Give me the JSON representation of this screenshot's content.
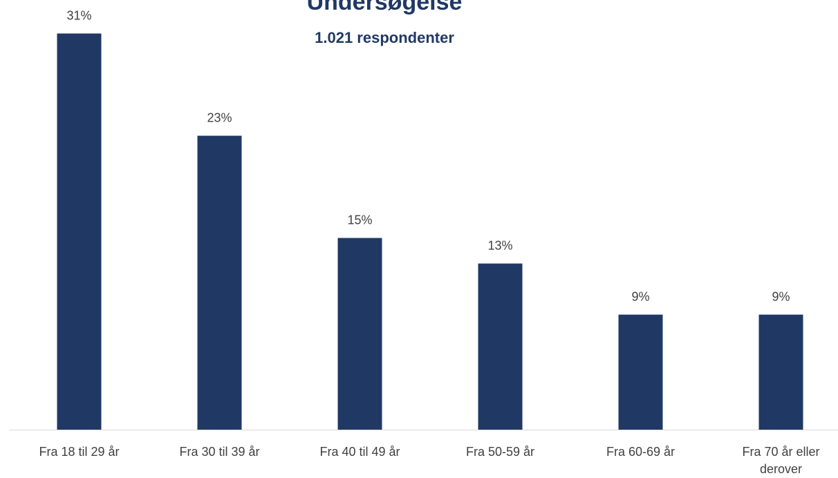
{
  "chart_data": {
    "type": "bar",
    "title": "Undersøgelse",
    "subtitle": "1.021 respondenter",
    "categories": [
      "Fra 18 til 29 år",
      "Fra 30 til 39 år",
      "Fra 40 til 49 år",
      "Fra 50-59 år",
      "Fra 60-69 år",
      "Fra 70 år eller derover"
    ],
    "values": [
      31,
      23,
      15,
      13,
      9,
      9
    ],
    "value_labels": [
      "31%",
      "23%",
      "15%",
      "13%",
      "9%",
      "9%"
    ],
    "color": "#203864"
  }
}
